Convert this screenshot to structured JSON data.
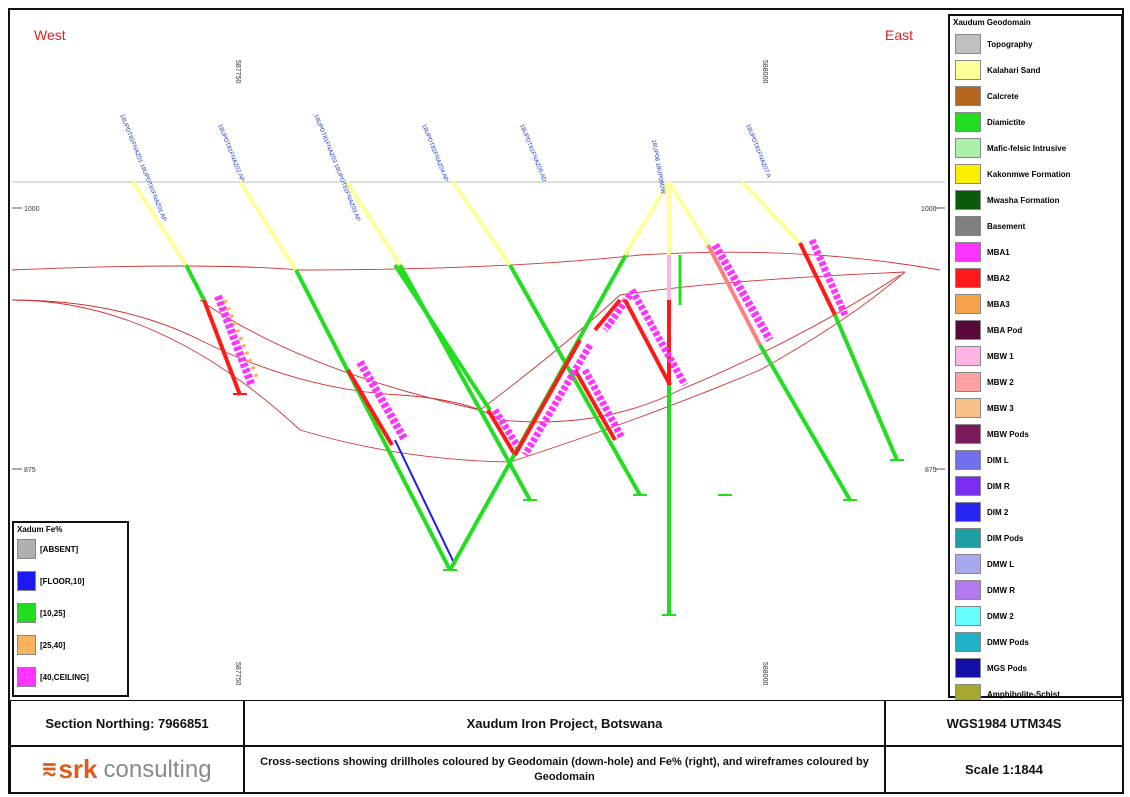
{
  "section": {
    "west_label": "West",
    "east_label": "East",
    "eastings": [
      "587750",
      "588000"
    ],
    "eastings_bottom": [
      "587750",
      "588000"
    ],
    "elevation_left": [
      "1000",
      "875"
    ],
    "elevation_right": [
      "1000",
      "875"
    ],
    "drillholes": [
      {
        "id": "XDH01",
        "label": "18UPDT81FNAZ01\n18UPDT81FNAZ01 AP"
      },
      {
        "id": "XDH02",
        "label": "18UPDT81FNAZ02 AP"
      },
      {
        "id": "XDH03",
        "label": "18UPDT81FNAZ03\n18UPDT81FNAZ03 AP"
      },
      {
        "id": "XDH04",
        "label": "18UPDT81FNAZ04 AP"
      },
      {
        "id": "XDH05",
        "label": "18UPDT81FNAZ05 AD"
      },
      {
        "id": "XDH06",
        "label": "18UP08\n18UP09DW"
      },
      {
        "id": "XDH07",
        "label": "18UPDT81FNAZ07 A"
      }
    ]
  },
  "geodomain_legend": {
    "title": "Xaudum Geodomain",
    "items": [
      {
        "label": "Topography",
        "color": "#c0c0c0"
      },
      {
        "label": "Kalahari Sand",
        "color": "#ffff99"
      },
      {
        "label": "Calcrete",
        "color": "#b5651d"
      },
      {
        "label": "Diamictite",
        "color": "#22dd22"
      },
      {
        "label": "Mafic-felsic Intrusive",
        "color": "#aaf0aa"
      },
      {
        "label": "Kakonmwe Formation",
        "color": "#ffee00"
      },
      {
        "label": "Mwasha Formation",
        "color": "#0a5a0a"
      },
      {
        "label": "Basement",
        "color": "#808080"
      },
      {
        "label": "MBA1",
        "color": "#ff33ff"
      },
      {
        "label": "MBA2",
        "color": "#ff1a1a"
      },
      {
        "label": "MBA3",
        "color": "#f7a14b"
      },
      {
        "label": "MBA Pod",
        "color": "#5a0a3a"
      },
      {
        "label": "MBW 1",
        "color": "#ffb3e6"
      },
      {
        "label": "MBW 2",
        "color": "#ffa0a0"
      },
      {
        "label": "MBW 3",
        "color": "#f7c28a"
      },
      {
        "label": "MBW Pods",
        "color": "#7a1a5a"
      },
      {
        "label": "DIM L",
        "color": "#7070ee"
      },
      {
        "label": "DIM R",
        "color": "#7a2cf0"
      },
      {
        "label": "DIM 2",
        "color": "#2626f0"
      },
      {
        "label": "DIM Pods",
        "color": "#1e9ea0"
      },
      {
        "label": "DMW L",
        "color": "#a8a8ee"
      },
      {
        "label": "DMW R",
        "color": "#b37af0"
      },
      {
        "label": "DMW 2",
        "color": "#66ffff"
      },
      {
        "label": "DMW Pods",
        "color": "#1fb0c8"
      },
      {
        "label": "MGS Pods",
        "color": "#1010a8"
      },
      {
        "label": "Amphibolite-Schist",
        "color": "#a8a830"
      }
    ]
  },
  "fe_legend": {
    "title": "Xadum Fe%",
    "items": [
      {
        "label": "[ABSENT]",
        "color": "#b0b0b0"
      },
      {
        "label": "[FLOOR,10]",
        "color": "#1a1aee"
      },
      {
        "label": "[10,25]",
        "color": "#22dd22"
      },
      {
        "label": "[25,40]",
        "color": "#f7b25e"
      },
      {
        "label": "[40,CEILING]",
        "color": "#ff33ff"
      }
    ]
  },
  "title_block": {
    "section_northing": "Section Northing: 7966851",
    "project": "Xaudum Iron Project, Botswana",
    "crs": "WGS1984 UTM34S",
    "description": "Cross-sections showing drillholes coloured by Geodomain (down-hole) and Fe% (right), and wireframes coloured by Geodomain",
    "scale": "Scale 1:1844",
    "logo_srk": "srk",
    "logo_consulting": "consulting"
  }
}
